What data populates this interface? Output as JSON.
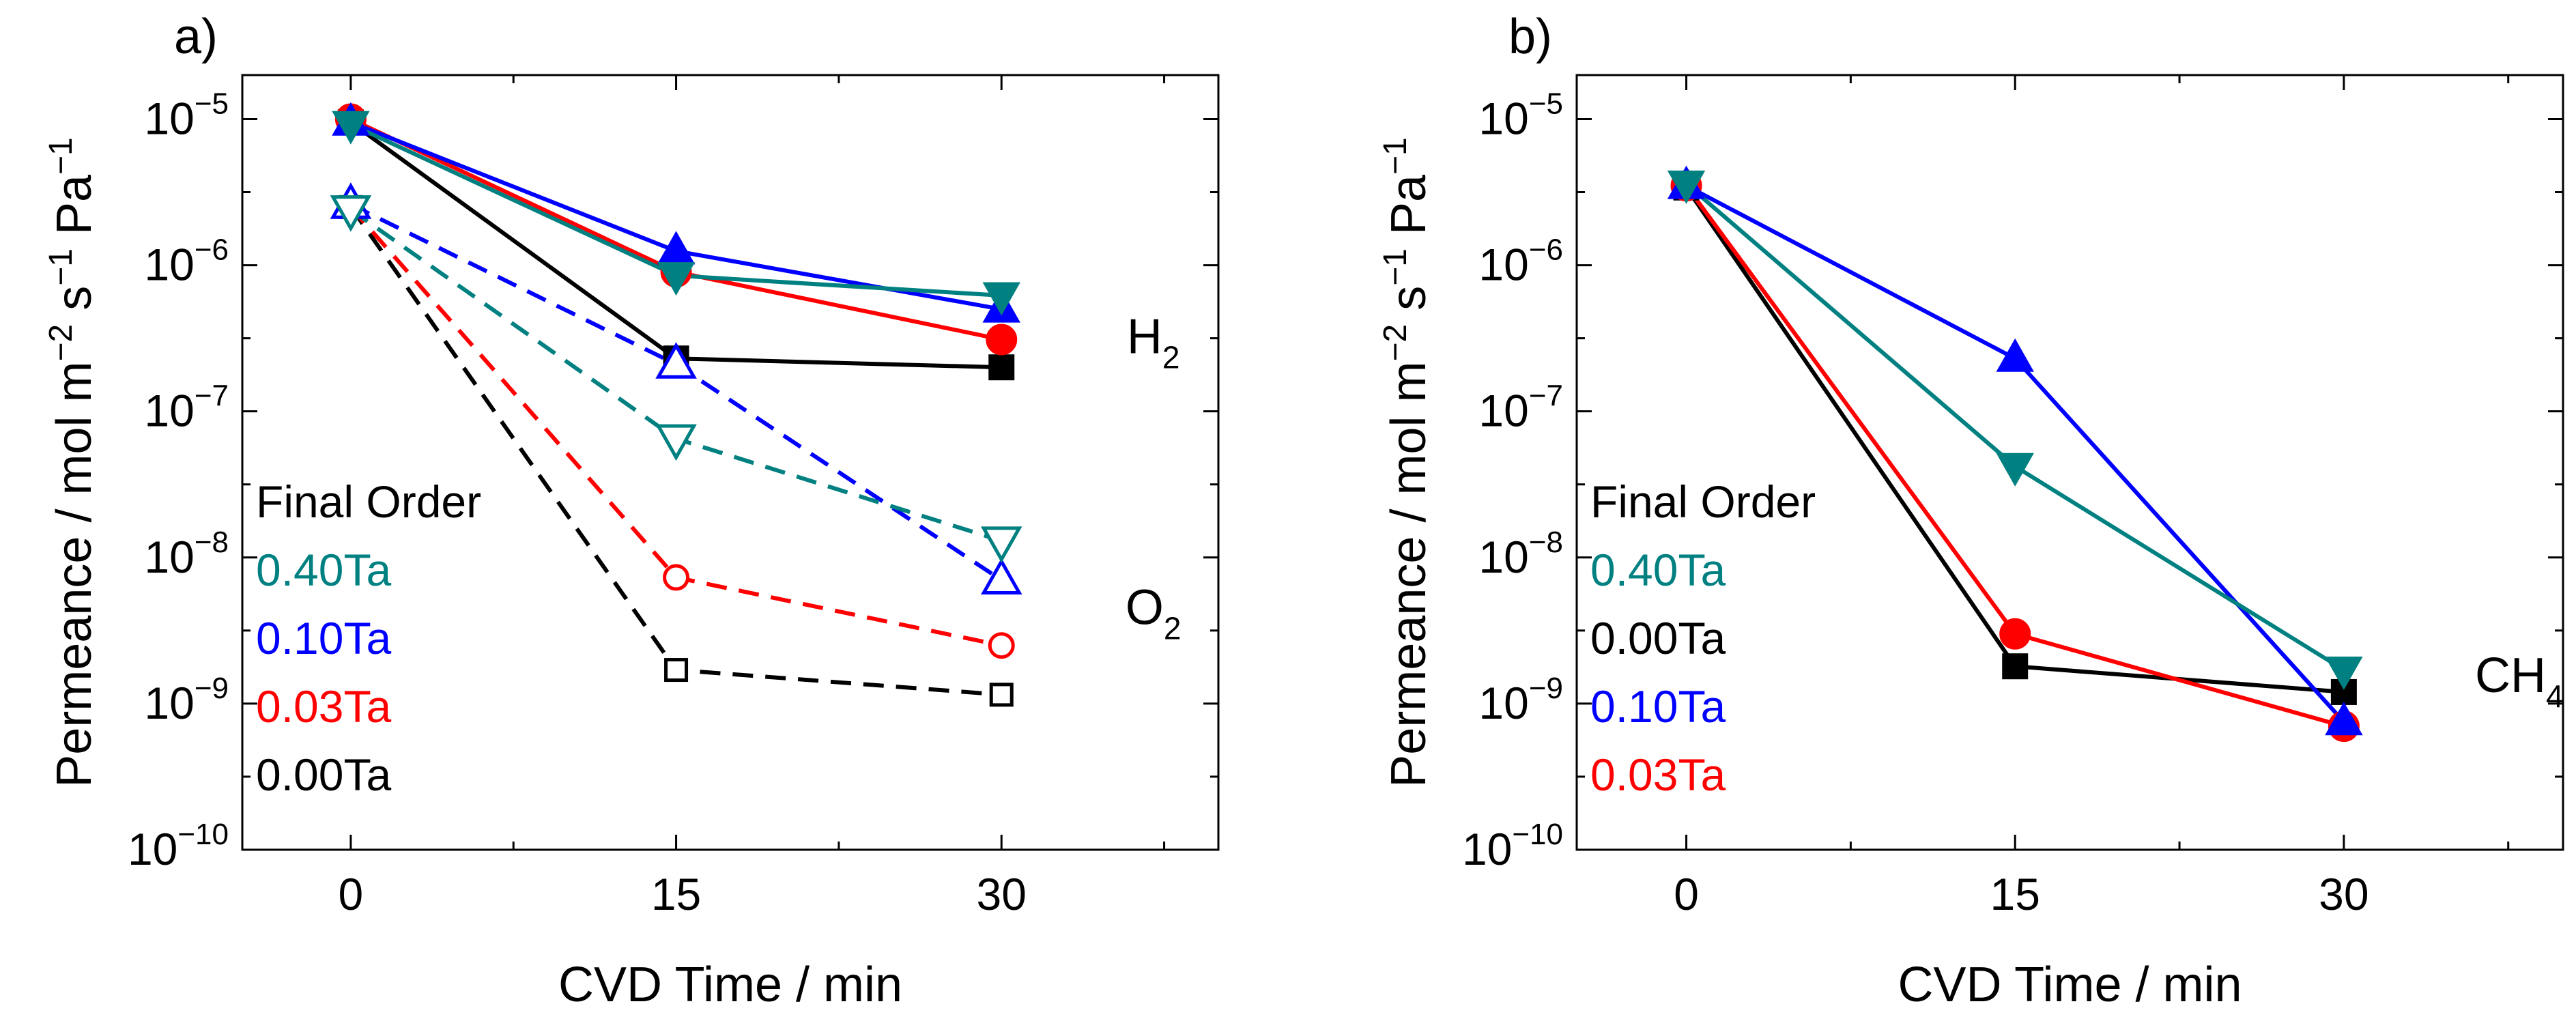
{
  "chart_data": [
    {
      "type": "line",
      "panel_label": "a)",
      "xlabel": "CVD Time / min",
      "ylabel": "Permeance / mol m^-2 s^-1 Pa^-1",
      "ylabel_parts": [
        "Permeance / mol m",
        "−2",
        " s",
        "−1",
        " Pa",
        "−1"
      ],
      "x_ticks": [
        "0",
        "15",
        "30"
      ],
      "y_ticks": [
        {
          "base": "10",
          "exp": "−10",
          "value": 1e-10
        },
        {
          "base": "10",
          "exp": "−9",
          "value": 1e-09
        },
        {
          "base": "10",
          "exp": "−8",
          "value": 1e-08
        },
        {
          "base": "10",
          "exp": "−7",
          "value": 1e-07
        },
        {
          "base": "10",
          "exp": "−6",
          "value": 1e-06
        },
        {
          "base": "10",
          "exp": "−5",
          "value": 1e-05
        }
      ],
      "xlim": [
        -5,
        40
      ],
      "ylim": [
        1e-10,
        2e-05
      ],
      "yscale": "log",
      "x": [
        0,
        15,
        30
      ],
      "gas_labels": [
        {
          "base": "H",
          "sub": "2",
          "x": 37,
          "y": 2.5e-07
        },
        {
          "base": "O",
          "sub": "2",
          "x": 37,
          "y": 3.5e-09
        }
      ],
      "legend_title": "Final Order",
      "legend": [
        {
          "label": "0.40Ta",
          "color": "#008080"
        },
        {
          "label": "0.10Ta",
          "color": "#0000ff"
        },
        {
          "label": "0.03Ta",
          "color": "#ff0000"
        },
        {
          "label": "0.00Ta",
          "color": "#000000"
        }
      ],
      "series": [
        {
          "name": "0.00Ta H2",
          "color": "#000000",
          "marker": "square",
          "filled": true,
          "dash": "solid",
          "values": [
            9.5e-06,
            2.3e-07,
            2e-07
          ]
        },
        {
          "name": "0.03Ta H2",
          "color": "#ff0000",
          "marker": "circle",
          "filled": true,
          "dash": "solid",
          "values": [
            1e-05,
            9e-07,
            3.1e-07
          ]
        },
        {
          "name": "0.10Ta H2",
          "color": "#0000ff",
          "marker": "triangle-up",
          "filled": true,
          "dash": "solid",
          "values": [
            9.5e-06,
            1.25e-06,
            5e-07
          ]
        },
        {
          "name": "0.40Ta H2",
          "color": "#008080",
          "marker": "triangle-down",
          "filled": true,
          "dash": "solid",
          "values": [
            9.2e-06,
            8.5e-07,
            6.2e-07
          ]
        },
        {
          "name": "0.00Ta O2",
          "color": "#000000",
          "marker": "square",
          "filled": false,
          "dash": "dashed",
          "values": [
            2.5e-06,
            1.7e-09,
            1.15e-09
          ]
        },
        {
          "name": "0.03Ta O2",
          "color": "#ff0000",
          "marker": "circle",
          "filled": false,
          "dash": "dashed",
          "values": [
            2.5e-06,
            7.3e-09,
            2.5e-09
          ]
        },
        {
          "name": "0.10Ta O2",
          "color": "#0000ff",
          "marker": "triangle-up",
          "filled": false,
          "dash": "dashed",
          "values": [
            2.6e-06,
            2.1e-07,
            7e-09
          ]
        },
        {
          "name": "0.40Ta O2",
          "color": "#008080",
          "marker": "triangle-down",
          "filled": false,
          "dash": "dashed",
          "values": [
            2.4e-06,
            6.5e-08,
            1.3e-08
          ]
        }
      ]
    },
    {
      "type": "line",
      "panel_label": "b)",
      "xlabel": "CVD Time / min",
      "ylabel": "Permeance / mol m^-2 s^-1 Pa^-1",
      "ylabel_parts": [
        "Permeance / mol m",
        "−2",
        " s",
        "−1",
        " Pa",
        "−1"
      ],
      "x_ticks": [
        "0",
        "15",
        "30"
      ],
      "y_ticks": [
        {
          "base": "10",
          "exp": "−10",
          "value": 1e-10
        },
        {
          "base": "10",
          "exp": "−9",
          "value": 1e-09
        },
        {
          "base": "10",
          "exp": "−8",
          "value": 1e-08
        },
        {
          "base": "10",
          "exp": "−7",
          "value": 1e-07
        },
        {
          "base": "10",
          "exp": "−6",
          "value": 1e-06
        },
        {
          "base": "10",
          "exp": "−5",
          "value": 1e-05
        }
      ],
      "xlim": [
        -5,
        40
      ],
      "ylim": [
        1e-10,
        2e-05
      ],
      "yscale": "log",
      "x": [
        0,
        15,
        30
      ],
      "gas_labels": [
        {
          "base": "CH",
          "sub": "4",
          "x": 38,
          "y": 1.2e-09
        }
      ],
      "legend_title": "Final Order",
      "legend": [
        {
          "label": "0.40Ta",
          "color": "#008080"
        },
        {
          "label": "0.00Ta",
          "color": "#000000"
        },
        {
          "label": "0.10Ta",
          "color": "#0000ff"
        },
        {
          "label": "0.03Ta",
          "color": "#ff0000"
        }
      ],
      "series": [
        {
          "name": "0.00Ta CH4",
          "color": "#000000",
          "marker": "square",
          "filled": true,
          "dash": "solid",
          "values": [
            3.4e-06,
            1.8e-09,
            1.2e-09
          ]
        },
        {
          "name": "0.03Ta CH4",
          "color": "#ff0000",
          "marker": "circle",
          "filled": true,
          "dash": "solid",
          "values": [
            3.5e-06,
            3e-09,
            7e-10
          ]
        },
        {
          "name": "0.10Ta CH4",
          "color": "#0000ff",
          "marker": "triangle-up",
          "filled": true,
          "dash": "solid",
          "values": [
            3.5e-06,
            2.3e-07,
            7.5e-10
          ]
        },
        {
          "name": "0.40Ta CH4",
          "color": "#008080",
          "marker": "triangle-down",
          "filled": true,
          "dash": "solid",
          "values": [
            3.6e-06,
            4.2e-08,
            1.7e-09
          ]
        }
      ]
    }
  ]
}
